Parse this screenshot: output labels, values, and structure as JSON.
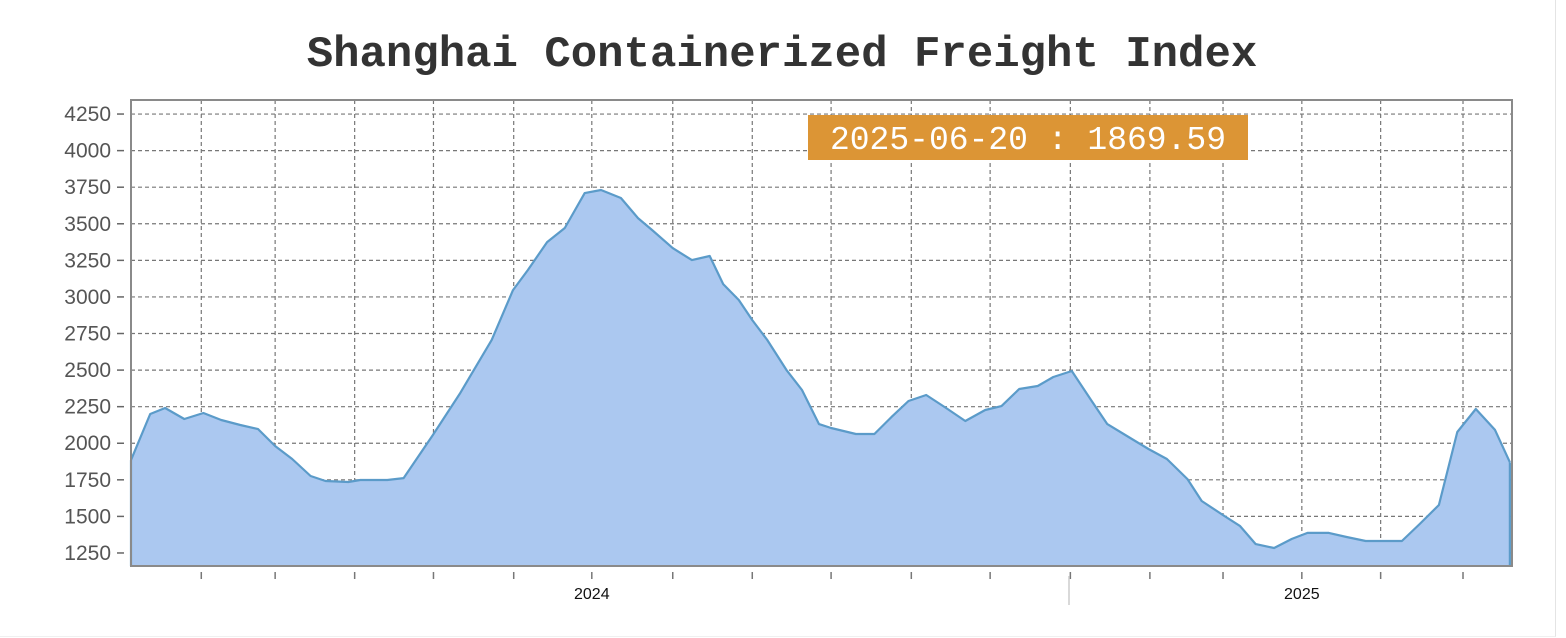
{
  "chart_data": {
    "type": "area",
    "title": "Shanghai Containerized Freight Index",
    "xlabel": "",
    "ylabel": "",
    "ylim": [
      1161,
      4346
    ],
    "xlim": [
      2023.351,
      2025.296
    ],
    "y_ticks": [
      1250,
      1500,
      1750,
      2000,
      2250,
      2500,
      2750,
      3000,
      3250,
      3500,
      3750,
      4000,
      4250
    ],
    "x_tick_labels": [
      {
        "x": 2024,
        "label": "2024"
      },
      {
        "x": 2025,
        "label": "2025"
      }
    ],
    "x_gridlines": [
      2023.45,
      2023.554,
      2023.666,
      2023.777,
      2023.89,
      2024.0,
      2024.114,
      2024.226,
      2024.337,
      2024.45,
      2024.561,
      2024.674,
      2024.786,
      2024.889,
      2025.0,
      2025.111,
      2025.227
    ],
    "grid": true,
    "legend": "none",
    "colors": {
      "fill": "#abc8f0",
      "line": "#5b9bc9",
      "tooltip": "#dc9535"
    },
    "tooltip": "2025-06-20 : 1869.59",
    "series": [
      {
        "x": [
          2023.351,
          2023.378,
          2023.399,
          2023.426,
          2023.453,
          2023.478,
          2023.505,
          2023.53,
          2023.554,
          2023.578,
          2023.604,
          2023.625,
          2023.657,
          2023.674,
          2023.712,
          2023.735,
          2023.776,
          2023.814,
          2023.859,
          2023.889,
          2023.91,
          2023.937,
          2023.962,
          2023.99,
          2024.013,
          2024.041,
          2024.065,
          2024.085,
          2024.114,
          2024.141,
          2024.166,
          2024.185,
          2024.207,
          2024.226,
          2024.247,
          2024.274,
          2024.296,
          2024.32,
          2024.337,
          2024.372,
          2024.398,
          2024.422,
          2024.446,
          2024.471,
          2024.499,
          2024.526,
          2024.554,
          2024.577,
          2024.602,
          2024.628,
          2024.65,
          2024.676,
          2024.704,
          2024.726,
          2024.756,
          2024.784,
          2024.81,
          2024.839,
          2024.859,
          2024.891,
          2024.913,
          2024.935,
          2024.961,
          2024.986,
          2025.008,
          2025.038,
          2025.063,
          2025.09,
          2025.141,
          2025.166,
          2025.193,
          2025.219,
          2025.245,
          2025.272,
          2025.293
        ],
        "values": [
          1885,
          2200,
          2241,
          2166,
          2207,
          2159,
          2125,
          2097,
          1981,
          1892,
          1776,
          1742,
          1735,
          1749,
          1749,
          1762,
          2056,
          2337,
          2706,
          3047,
          3184,
          3375,
          3471,
          3710,
          3731,
          3676,
          3539,
          3457,
          3334,
          3252,
          3280,
          3088,
          2979,
          2842,
          2706,
          2501,
          2364,
          2131,
          2104,
          2063,
          2063,
          2179,
          2289,
          2330,
          2241,
          2152,
          2227,
          2254,
          2371,
          2391,
          2453,
          2494,
          2289,
          2131,
          2043,
          1961,
          1892,
          1755,
          1605,
          1503,
          1434,
          1311,
          1284,
          1346,
          1387,
          1387,
          1359,
          1332,
          1332,
          1448,
          1578,
          2077,
          2234,
          2091,
          1869.59
        ]
      }
    ]
  }
}
